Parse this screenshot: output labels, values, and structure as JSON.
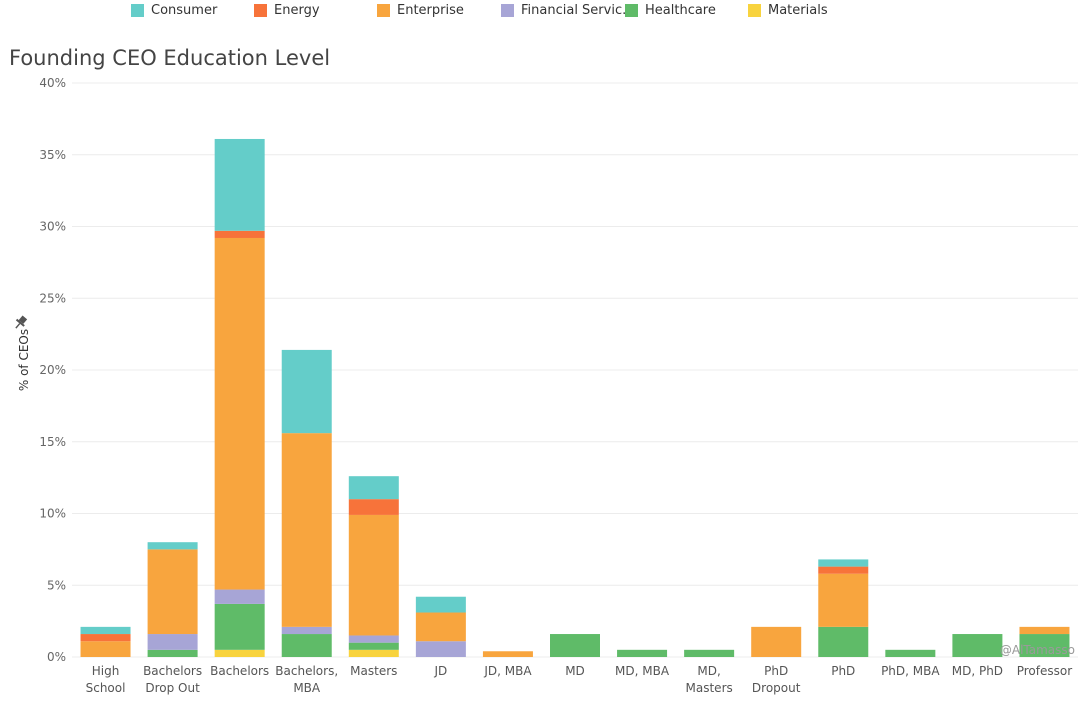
{
  "chart_data": {
    "type": "bar",
    "stacked": true,
    "title": "Founding CEO Education Level",
    "ylabel": "% of CEOs",
    "xlabel": "",
    "ylim": [
      0,
      40
    ],
    "yticks": [
      "0%",
      "5%",
      "10%",
      "15%",
      "20%",
      "25%",
      "30%",
      "35%",
      "40%"
    ],
    "grid": true,
    "legend_position": "top",
    "credit": "@AlTamasso",
    "categories": [
      "High School",
      "Bachelors Drop Out",
      "Bachelors",
      "Bachelors, MBA",
      "Masters",
      "JD",
      "JD, MBA",
      "MD",
      "MD, MBA",
      "MD, Masters",
      "PhD Dropout",
      "PhD",
      "PhD, MBA",
      "MD, PhD",
      "Professor"
    ],
    "category_lines": [
      [
        "High",
        "School"
      ],
      [
        "Bachelors",
        "Drop Out"
      ],
      [
        "Bachelors"
      ],
      [
        "Bachelors,",
        "MBA"
      ],
      [
        "Masters"
      ],
      [
        "JD"
      ],
      [
        "JD, MBA"
      ],
      [
        "MD"
      ],
      [
        "MD, MBA"
      ],
      [
        "MD,",
        "Masters"
      ],
      [
        "PhD",
        "Dropout"
      ],
      [
        "PhD"
      ],
      [
        "PhD, MBA"
      ],
      [
        "MD, PhD"
      ],
      [
        "Professor"
      ]
    ],
    "series": [
      {
        "name": "Materials",
        "color": "#f8d33e",
        "values": [
          0,
          0,
          0.5,
          0,
          0.5,
          0,
          0,
          0,
          0,
          0,
          0,
          0,
          0,
          0,
          0
        ]
      },
      {
        "name": "Healthcare",
        "color": "#5fbb68",
        "values": [
          0,
          0.5,
          3.2,
          1.6,
          0.5,
          0,
          0,
          1.6,
          0.5,
          0.5,
          0,
          2.1,
          0.5,
          1.6,
          1.6
        ]
      },
      {
        "name": "Financial Servic..",
        "color": "#a7a5d6",
        "values": [
          0,
          1.1,
          1.0,
          0.5,
          0.5,
          1.1,
          0,
          0,
          0,
          0,
          0,
          0,
          0,
          0,
          0
        ]
      },
      {
        "name": "Enterprise",
        "color": "#f8a53e",
        "values": [
          1.1,
          5.9,
          24.5,
          13.5,
          8.4,
          2.0,
          0.4,
          0,
          0,
          0,
          2.1,
          3.7,
          0,
          0,
          0.5
        ]
      },
      {
        "name": "Energy",
        "color": "#f7733a",
        "values": [
          0.5,
          0,
          0.5,
          0,
          1.1,
          0,
          0,
          0,
          0,
          0,
          0,
          0.5,
          0,
          0,
          0
        ]
      },
      {
        "name": "Consumer",
        "color": "#64cdc9",
        "values": [
          0.5,
          0.5,
          6.4,
          5.8,
          1.6,
          1.1,
          0,
          0,
          0,
          0,
          0,
          0.5,
          0,
          0,
          0
        ]
      }
    ]
  },
  "legend": {
    "items": [
      {
        "name": "Consumer",
        "color": "#64cdc9"
      },
      {
        "name": "Energy",
        "color": "#f7733a"
      },
      {
        "name": "Enterprise",
        "color": "#f8a53e"
      },
      {
        "name": "Financial Servic..",
        "color": "#a7a5d6"
      },
      {
        "name": "Healthcare",
        "color": "#5fbb68"
      },
      {
        "name": "Materials",
        "color": "#f8d33e"
      }
    ]
  }
}
